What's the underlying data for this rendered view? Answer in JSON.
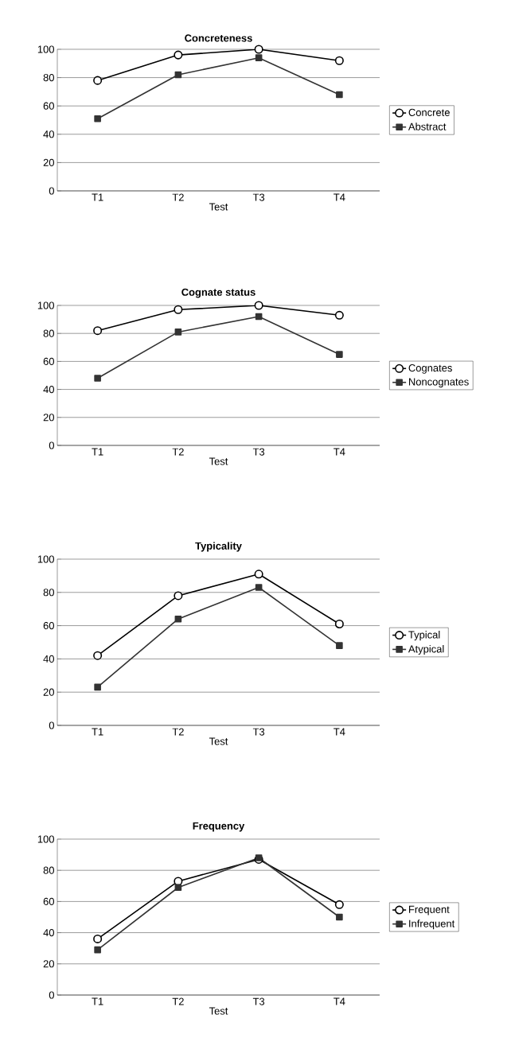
{
  "chart_data": [
    {
      "type": "line",
      "title": "Concreteness",
      "xlabel": "Test",
      "categories": [
        "T1",
        "T2",
        "T3",
        "T4"
      ],
      "series": [
        {
          "name": "Concrete",
          "color": "#000000",
          "marker": "circle",
          "values": [
            78,
            96,
            100,
            92
          ]
        },
        {
          "name": "Abstract",
          "color": "#333333",
          "marker": "square",
          "values": [
            51,
            82,
            94,
            68
          ]
        }
      ],
      "ylim": [
        0,
        100
      ],
      "yticks": [
        0,
        20,
        40,
        60,
        80,
        100
      ],
      "grid": "y",
      "legend": "right",
      "line_style": "solid"
    },
    {
      "type": "line",
      "title": "Cognate status",
      "xlabel": "Test",
      "categories": [
        "T1",
        "T2",
        "T3",
        "T4"
      ],
      "series": [
        {
          "name": "Cognates",
          "color": "#000000",
          "marker": "circle",
          "values": [
            82,
            97,
            100,
            93
          ]
        },
        {
          "name": "Noncognates",
          "color": "#333333",
          "marker": "square",
          "values": [
            48,
            81,
            92,
            65
          ]
        }
      ],
      "ylim": [
        0,
        100
      ],
      "yticks": [
        0,
        20,
        40,
        60,
        80,
        100
      ],
      "grid": "y",
      "legend": "right",
      "line_style": "solid"
    },
    {
      "type": "line",
      "title": "Typicality",
      "xlabel": "Test",
      "categories": [
        "T1",
        "T2",
        "T3",
        "T4"
      ],
      "series": [
        {
          "name": "Typical",
          "color": "#000000",
          "marker": "circle",
          "values": [
            42,
            78,
            91,
            61
          ]
        },
        {
          "name": "Atypical",
          "color": "#333333",
          "marker": "square",
          "values": [
            23,
            64,
            83,
            48
          ]
        }
      ],
      "ylim": [
        0,
        100
      ],
      "yticks": [
        0,
        20,
        40,
        60,
        80,
        100
      ],
      "grid": "y",
      "legend": "right",
      "line_style": "solid"
    },
    {
      "type": "line",
      "title": "Frequency",
      "xlabel": "Test",
      "categories": [
        "T1",
        "T2",
        "T3",
        "T4"
      ],
      "series": [
        {
          "name": "Frequent",
          "color": "#000000",
          "marker": "circle",
          "values": [
            36,
            73,
            87,
            58
          ]
        },
        {
          "name": "Infrequent",
          "color": "#333333",
          "marker": "square",
          "values": [
            29,
            69,
            88,
            50
          ]
        }
      ],
      "ylim": [
        0,
        100
      ],
      "yticks": [
        0,
        20,
        40,
        60,
        80,
        100
      ],
      "grid": "y",
      "legend": "right",
      "line_style": "solid"
    }
  ]
}
